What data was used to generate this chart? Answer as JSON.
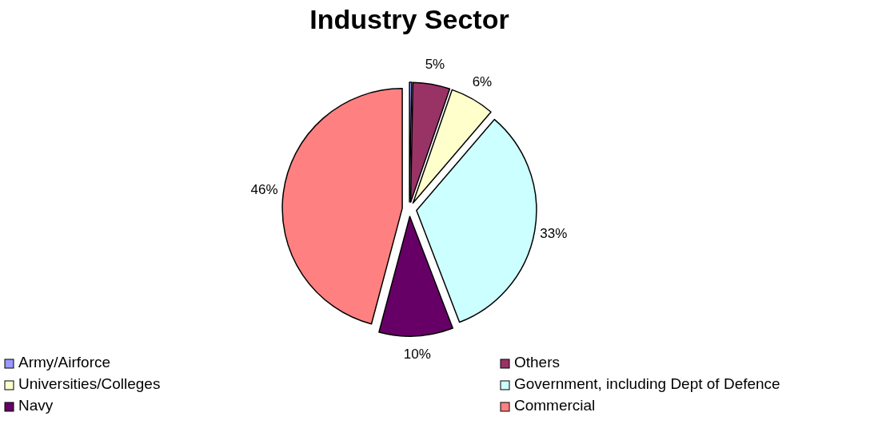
{
  "chart_data": {
    "type": "pie",
    "title": "Industry Sector",
    "categories": [
      "Army/Airforce",
      "Others",
      "Universities/Colleges",
      "Government, including Dept of Defence",
      "Navy",
      "Commercial"
    ],
    "values": [
      0.3,
      5,
      6,
      33,
      10,
      46
    ],
    "value_labels": [
      null,
      "5%",
      "6%",
      "33%",
      "10%",
      "46%"
    ],
    "colors": [
      "#9999ff",
      "#993366",
      "#ffffcc",
      "#ccffff",
      "#660066",
      "#ff8080"
    ],
    "legend": "bottom"
  }
}
